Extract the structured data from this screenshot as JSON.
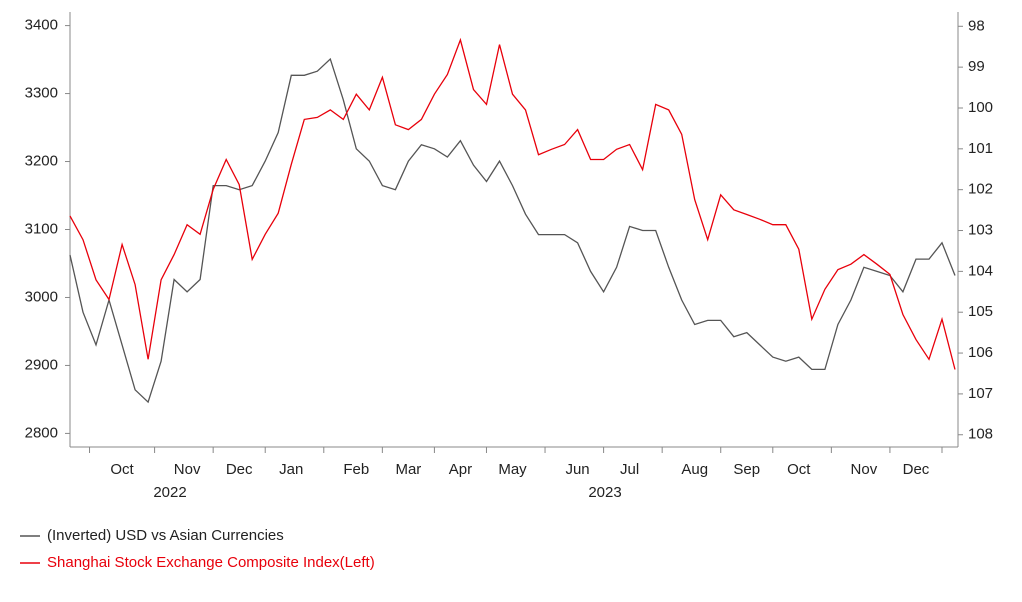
{
  "chart_data": {
    "type": "line",
    "categories": [
      null,
      null,
      null,
      null,
      "Oct",
      null,
      null,
      null,
      null,
      "Nov",
      null,
      null,
      null,
      "Dec",
      null,
      null,
      null,
      "Jan",
      null,
      null,
      null,
      null,
      "Feb",
      null,
      null,
      null,
      "Mar",
      null,
      null,
      null,
      "Apr",
      null,
      null,
      null,
      "May",
      null,
      null,
      null,
      null,
      "Jun",
      null,
      null,
      null,
      "Jul",
      null,
      null,
      null,
      null,
      "Aug",
      null,
      null,
      null,
      "Sep",
      null,
      null,
      null,
      "Oct",
      null,
      null,
      null,
      null,
      "Nov",
      null,
      null,
      null,
      "Dec",
      null,
      null,
      null
    ],
    "year_labels": [
      "2022",
      "2023"
    ],
    "ylim": [
      2780,
      3420
    ],
    "yticks": [
      2800,
      2900,
      3000,
      3100,
      3200,
      3300,
      3400
    ],
    "y2lim": [
      108.3,
      97.65
    ],
    "y2ticks": [
      98,
      99,
      100,
      101,
      102,
      103,
      104,
      105,
      106,
      107,
      108
    ],
    "series": [
      {
        "name": "(Inverted) USD vs Asian Currencies",
        "color": "#555555",
        "axis": "y2",
        "values": [
          103.6,
          105.0,
          105.8,
          104.7,
          105.8,
          106.9,
          107.2,
          106.2,
          104.2,
          104.5,
          104.2,
          101.9,
          101.9,
          102.0,
          101.9,
          101.3,
          100.6,
          99.2,
          99.2,
          99.1,
          98.8,
          99.8,
          101.0,
          101.3,
          101.9,
          102.0,
          101.3,
          100.9,
          101.0,
          101.2,
          100.8,
          101.4,
          101.8,
          101.3,
          101.9,
          102.6,
          103.1,
          103.1,
          103.1,
          103.3,
          104.0,
          104.5,
          103.9,
          102.9,
          103.0,
          103.0,
          103.9,
          104.7,
          105.3,
          105.2,
          105.2,
          105.6,
          105.5,
          105.8,
          106.1,
          106.2,
          106.1,
          106.4,
          106.4,
          105.3,
          104.7,
          103.9,
          104.0,
          104.1,
          104.5,
          103.7,
          103.7,
          103.3,
          104.1
        ]
      },
      {
        "name": "Shanghai Stock Exchange Composite Index(Left)",
        "color": "#e8000b",
        "axis": "y",
        "values": [
          3120,
          3085,
          3026,
          2997,
          3078,
          3019,
          2909,
          3026,
          3063,
          3107,
          3093,
          3159,
          3203,
          3166,
          3056,
          3093,
          3124,
          3196,
          3262,
          3265,
          3276,
          3262,
          3299,
          3276,
          3324,
          3254,
          3247,
          3262,
          3299,
          3328,
          3379,
          3306,
          3284,
          3372,
          3299,
          3276,
          3210,
          3218,
          3225,
          3247,
          3203,
          3203,
          3218,
          3225,
          3188,
          3284,
          3276,
          3240,
          3144,
          3085,
          3151,
          3129,
          3122,
          3115,
          3107,
          3107,
          3071,
          2968,
          3012,
          3041,
          3049,
          3063,
          3049,
          3034,
          2975,
          2938,
          2909,
          2968,
          2894
        ]
      }
    ]
  }
}
